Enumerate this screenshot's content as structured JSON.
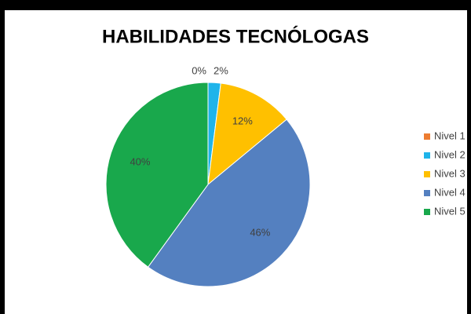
{
  "chart_data": {
    "type": "pie",
    "title": "HABILIDADES TECNÓLOGAS",
    "categories": [
      "Nivel 1",
      "Nivel 2",
      "Nivel 3",
      "Nivel 4",
      "Nivel 5"
    ],
    "values": [
      0,
      2,
      12,
      46,
      40
    ],
    "value_labels": [
      "0%",
      "2%",
      "12%",
      "46%",
      "40%"
    ],
    "colors": [
      "#ed7d31",
      "#1fb4ea",
      "#ffc000",
      "#5480c0",
      "#19a84c"
    ],
    "legend": "right"
  }
}
